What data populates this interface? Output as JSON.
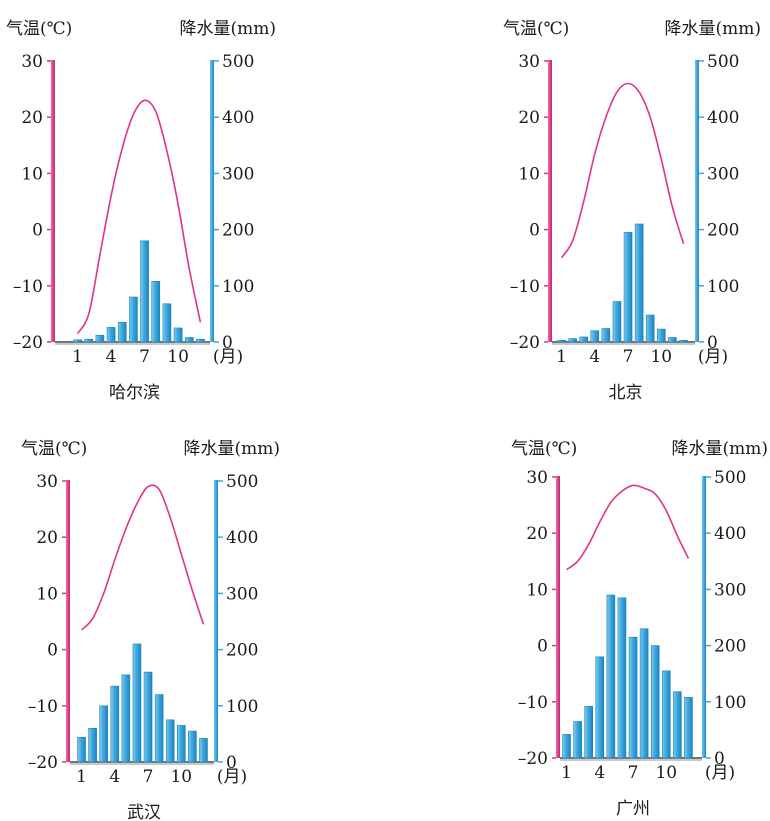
{
  "chart_data": [
    {
      "type": "bar",
      "title": "",
      "city": "哈尔滨",
      "months": [
        1,
        2,
        3,
        4,
        5,
        6,
        7,
        8,
        9,
        10,
        11,
        12
      ],
      "x_tick_labels": [
        "1",
        "4",
        "7",
        "10"
      ],
      "x_unit": "(月)",
      "temp_label": "气温(℃)",
      "precip_label": "降水量(mm)",
      "temp_ticks": [
        "30",
        "20",
        "10",
        "0",
        "–10",
        "–20"
      ],
      "precip_ticks": [
        "500",
        "400",
        "300",
        "200",
        "100",
        "0"
      ],
      "temp_range": [
        -20,
        30
      ],
      "precip_range": [
        0,
        500
      ],
      "series": [
        {
          "name": "降水量",
          "type": "bar",
          "values": [
            4,
            5,
            12,
            26,
            35,
            80,
            180,
            108,
            68,
            25,
            8,
            5
          ]
        },
        {
          "name": "气温",
          "type": "line",
          "values": [
            -18.5,
            -15,
            -4.5,
            6,
            14.5,
            20.5,
            23,
            21,
            14,
            4.5,
            -7,
            -16.5
          ]
        }
      ]
    },
    {
      "type": "bar",
      "title": "",
      "city": "北京",
      "months": [
        1,
        2,
        3,
        4,
        5,
        6,
        7,
        8,
        9,
        10,
        11,
        12
      ],
      "x_tick_labels": [
        "1",
        "4",
        "7",
        "10"
      ],
      "x_unit": "(月)",
      "temp_label": "气温(℃)",
      "precip_label": "降水量(mm)",
      "temp_ticks": [
        "30",
        "20",
        "10",
        "0",
        "–10",
        "–20"
      ],
      "precip_ticks": [
        "500",
        "400",
        "300",
        "200",
        "100",
        "0"
      ],
      "temp_range": [
        -20,
        30
      ],
      "precip_range": [
        0,
        500
      ],
      "series": [
        {
          "name": "降水量",
          "type": "bar",
          "values": [
            3,
            6,
            9,
            20,
            24,
            72,
            195,
            210,
            48,
            23,
            8,
            3
          ]
        },
        {
          "name": "气温",
          "type": "line",
          "values": [
            -5,
            -2,
            5,
            13.5,
            20,
            24.5,
            26,
            24.5,
            20,
            12.5,
            4,
            -2.5
          ]
        }
      ]
    },
    {
      "type": "bar",
      "title": "",
      "city": "武汉",
      "months": [
        1,
        2,
        3,
        4,
        5,
        6,
        7,
        8,
        9,
        10,
        11,
        12
      ],
      "x_tick_labels": [
        "1",
        "4",
        "7",
        "10"
      ],
      "x_unit": "(月)",
      "temp_label": "气温(℃)",
      "precip_label": "降水量(mm)",
      "temp_ticks": [
        "30",
        "20",
        "10",
        "0",
        "–10",
        "–20"
      ],
      "precip_ticks": [
        "500",
        "400",
        "300",
        "200",
        "100",
        "0"
      ],
      "temp_range": [
        -20,
        30
      ],
      "precip_range": [
        0,
        500
      ],
      "series": [
        {
          "name": "降水量",
          "type": "bar",
          "values": [
            44,
            60,
            100,
            135,
            155,
            210,
            160,
            120,
            75,
            65,
            55,
            42
          ]
        },
        {
          "name": "气温",
          "type": "line",
          "values": [
            3.5,
            5.5,
            10,
            16,
            21.5,
            26,
            29,
            28.5,
            23.5,
            17,
            10.5,
            4.5
          ]
        }
      ]
    },
    {
      "type": "bar",
      "title": "",
      "city": "广州",
      "months": [
        1,
        2,
        3,
        4,
        5,
        6,
        7,
        8,
        9,
        10,
        11,
        12
      ],
      "x_tick_labels": [
        "1",
        "4",
        "7",
        "10"
      ],
      "x_unit": "(月)",
      "temp_label": "气温(℃)",
      "precip_label": "降水量(mm)",
      "temp_ticks": [
        "30",
        "20",
        "10",
        "0",
        "–10",
        "–20"
      ],
      "precip_ticks": [
        "500",
        "400",
        "300",
        "200",
        "100",
        "0"
      ],
      "temp_range": [
        -20,
        30
      ],
      "precip_range": [
        0,
        500
      ],
      "series": [
        {
          "name": "降水量",
          "type": "bar",
          "values": [
            42,
            65,
            92,
            180,
            290,
            285,
            215,
            230,
            200,
            155,
            118,
            108
          ]
        },
        {
          "name": "气温",
          "type": "line",
          "values": [
            13.5,
            15,
            18,
            22,
            25.5,
            27.5,
            28.5,
            28,
            27,
            24,
            19.5,
            15.5
          ]
        }
      ]
    }
  ],
  "colors": {
    "temperature": "#e0338a",
    "precipitation": "#3ea8dd",
    "precipitation_edge": "#1b7fb9",
    "baseline": "#9d9d9d",
    "text": "#1a1a1a"
  }
}
